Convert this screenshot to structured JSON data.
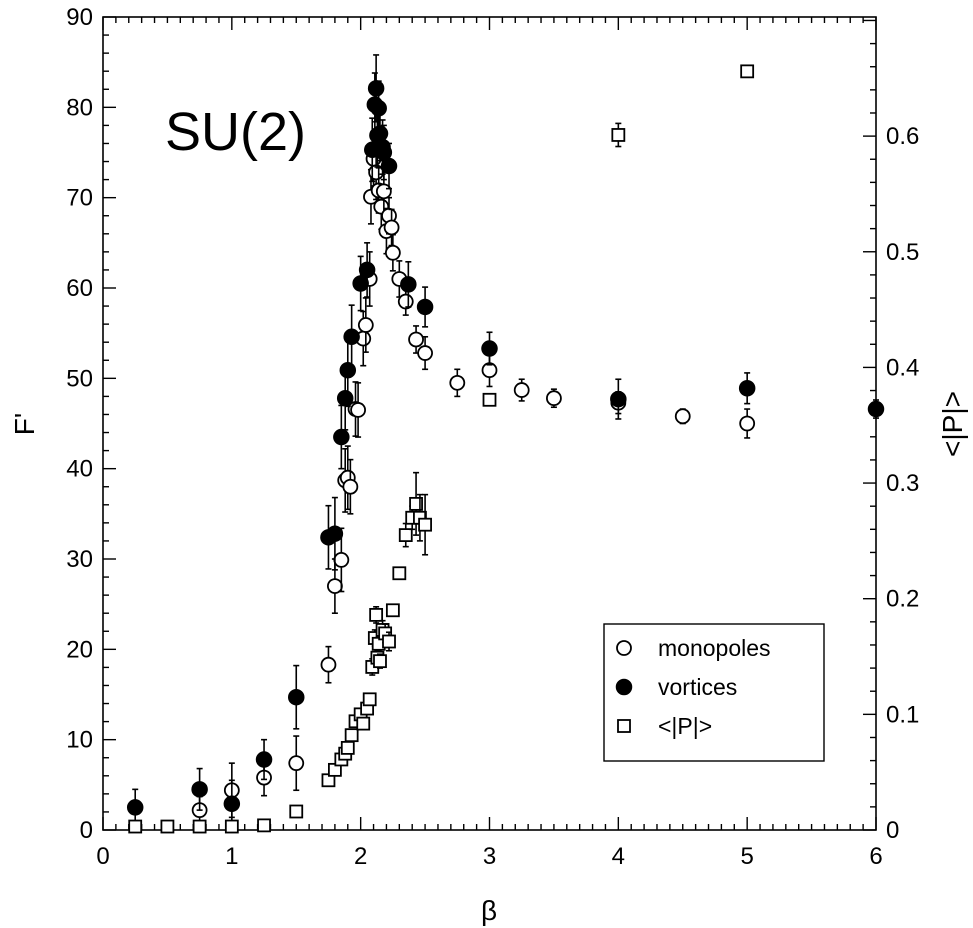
{
  "chart_data": {
    "type": "scatter",
    "title": "SU(2)",
    "xlabel": "β",
    "ylabel": "F'",
    "y2label": "<|P|>",
    "xlim": [
      0,
      6
    ],
    "ylim": [
      0,
      90
    ],
    "y2lim": [
      0,
      0.703
    ],
    "x_ticks": [
      "0",
      "1",
      "2",
      "3",
      "4",
      "5",
      "6"
    ],
    "y_ticks": [
      "0",
      "10",
      "20",
      "30",
      "40",
      "50",
      "60",
      "70",
      "80",
      "90"
    ],
    "y2_ticks": [
      "0",
      "0.1",
      "0.2",
      "0.3",
      "0.4",
      "0.5",
      "0.6"
    ],
    "grid": false,
    "legend_position": "bottom-right",
    "series": [
      {
        "name": "monopoles",
        "marker": "open-circle",
        "axis": "left",
        "points": [
          {
            "x": 0.75,
            "y": 2.2,
            "err": 1.5
          },
          {
            "x": 1.0,
            "y": 4.4,
            "err": 3.0
          },
          {
            "x": 1.25,
            "y": 5.8,
            "err": 2.0
          },
          {
            "x": 1.5,
            "y": 7.4,
            "err": 3.0
          },
          {
            "x": 1.75,
            "y": 18.3,
            "err": 2.0
          },
          {
            "x": 1.8,
            "y": 27.0,
            "err": 3.0
          },
          {
            "x": 1.85,
            "y": 29.9,
            "err": 3.5
          },
          {
            "x": 1.88,
            "y": 38.7,
            "err": 3.5
          },
          {
            "x": 1.9,
            "y": 39.0,
            "err": 3.5
          },
          {
            "x": 1.92,
            "y": 38.0,
            "err": 3.0
          },
          {
            "x": 1.96,
            "y": 46.6,
            "err": 3.0
          },
          {
            "x": 1.98,
            "y": 46.5,
            "err": 3.0
          },
          {
            "x": 2.02,
            "y": 54.4,
            "err": 3.0
          },
          {
            "x": 2.04,
            "y": 55.9,
            "err": 3.0
          },
          {
            "x": 2.07,
            "y": 61.0,
            "err": 3.0
          },
          {
            "x": 2.08,
            "y": 70.1,
            "err": 3.0
          },
          {
            "x": 2.1,
            "y": 74.3,
            "err": 3.0
          },
          {
            "x": 2.12,
            "y": 72.8,
            "err": 3.0
          },
          {
            "x": 2.14,
            "y": 70.8,
            "err": 2.5
          },
          {
            "x": 2.16,
            "y": 69.0,
            "err": 2.5
          },
          {
            "x": 2.18,
            "y": 70.7,
            "err": 2.5
          },
          {
            "x": 2.2,
            "y": 66.3,
            "err": 2.5
          },
          {
            "x": 2.22,
            "y": 68.0,
            "err": 2.0
          },
          {
            "x": 2.24,
            "y": 66.7,
            "err": 2.0
          },
          {
            "x": 2.25,
            "y": 63.9,
            "err": 2.0
          },
          {
            "x": 2.3,
            "y": 61.0,
            "err": 2.0
          },
          {
            "x": 2.35,
            "y": 58.5,
            "err": 1.5
          },
          {
            "x": 2.43,
            "y": 54.3,
            "err": 1.5
          },
          {
            "x": 2.5,
            "y": 52.8,
            "err": 1.8
          },
          {
            "x": 2.75,
            "y": 49.5,
            "err": 1.5
          },
          {
            "x": 3.0,
            "y": 50.9,
            "err": 1.8
          },
          {
            "x": 3.25,
            "y": 48.7,
            "err": 1.2
          },
          {
            "x": 3.5,
            "y": 47.8,
            "err": 1.0
          },
          {
            "x": 4.0,
            "y": 47.3,
            "err": 1.2
          },
          {
            "x": 4.5,
            "y": 45.8,
            "err": 0.8
          },
          {
            "x": 5.0,
            "y": 45.0,
            "err": 1.6
          }
        ]
      },
      {
        "name": "vortices",
        "marker": "filled-circle",
        "axis": "left",
        "points": [
          {
            "x": 0.25,
            "y": 2.5,
            "err": 2.0
          },
          {
            "x": 0.75,
            "y": 4.5,
            "err": 2.3
          },
          {
            "x": 1.0,
            "y": 2.9,
            "err": 2.6
          },
          {
            "x": 1.25,
            "y": 7.8,
            "err": 2.2
          },
          {
            "x": 1.5,
            "y": 14.7,
            "err": 3.5
          },
          {
            "x": 1.75,
            "y": 32.4,
            "err": 3.5
          },
          {
            "x": 1.8,
            "y": 32.8,
            "err": 4.0
          },
          {
            "x": 1.85,
            "y": 43.5,
            "err": 3.5
          },
          {
            "x": 1.88,
            "y": 47.8,
            "err": 3.5
          },
          {
            "x": 1.9,
            "y": 50.9,
            "err": 4.0
          },
          {
            "x": 1.93,
            "y": 54.6,
            "err": 3.5
          },
          {
            "x": 2.0,
            "y": 60.5,
            "err": 3.0
          },
          {
            "x": 2.05,
            "y": 62.0,
            "err": 3.0
          },
          {
            "x": 2.09,
            "y": 75.3,
            "err": 3.5
          },
          {
            "x": 2.11,
            "y": 80.3,
            "err": 3.5
          },
          {
            "x": 2.12,
            "y": 82.1,
            "err": 3.7
          },
          {
            "x": 2.13,
            "y": 76.9,
            "err": 3.5
          },
          {
            "x": 2.14,
            "y": 79.9,
            "err": 3.0
          },
          {
            "x": 2.15,
            "y": 77.1,
            "err": 3.0
          },
          {
            "x": 2.17,
            "y": 75.6,
            "err": 3.0
          },
          {
            "x": 2.18,
            "y": 75.0,
            "err": 3.0
          },
          {
            "x": 2.22,
            "y": 73.5,
            "err": 2.5
          },
          {
            "x": 2.37,
            "y": 60.4,
            "err": 2.5
          },
          {
            "x": 2.5,
            "y": 57.9,
            "err": 2.2
          },
          {
            "x": 3.0,
            "y": 53.3,
            "err": 1.8
          },
          {
            "x": 4.0,
            "y": 47.7,
            "err": 2.2
          },
          {
            "x": 5.0,
            "y": 48.9,
            "err": 1.7
          },
          {
            "x": 6.0,
            "y": 46.6,
            "err": 1.0
          }
        ]
      },
      {
        "name": "<|P|>",
        "marker": "open-square",
        "axis": "right",
        "points": [
          {
            "x": 0.25,
            "y": 0.003,
            "err": 0.0
          },
          {
            "x": 0.5,
            "y": 0.003,
            "err": 0.0
          },
          {
            "x": 0.75,
            "y": 0.003,
            "err": 0.0
          },
          {
            "x": 1.0,
            "y": 0.003,
            "err": 0.0
          },
          {
            "x": 1.25,
            "y": 0.004,
            "err": 0.0
          },
          {
            "x": 1.5,
            "y": 0.016,
            "err": 0.0
          },
          {
            "x": 1.75,
            "y": 0.043,
            "err": 0.0
          },
          {
            "x": 1.8,
            "y": 0.052,
            "err": 0.0
          },
          {
            "x": 1.85,
            "y": 0.061,
            "err": 0.0
          },
          {
            "x": 1.88,
            "y": 0.066,
            "err": 0.0
          },
          {
            "x": 1.9,
            "y": 0.071,
            "err": 0.0
          },
          {
            "x": 1.93,
            "y": 0.082,
            "err": 0.0
          },
          {
            "x": 1.96,
            "y": 0.094,
            "err": 0.0
          },
          {
            "x": 2.0,
            "y": 0.1,
            "err": 0.0
          },
          {
            "x": 2.02,
            "y": 0.092,
            "err": 0.0
          },
          {
            "x": 2.05,
            "y": 0.105,
            "err": 0.0
          },
          {
            "x": 2.07,
            "y": 0.113,
            "err": 0.0
          },
          {
            "x": 2.09,
            "y": 0.141,
            "err": 0.007
          },
          {
            "x": 2.11,
            "y": 0.166,
            "err": 0.007
          },
          {
            "x": 2.12,
            "y": 0.186,
            "err": 0.007
          },
          {
            "x": 2.13,
            "y": 0.149,
            "err": 0.006
          },
          {
            "x": 2.14,
            "y": 0.161,
            "err": 0.006
          },
          {
            "x": 2.15,
            "y": 0.146,
            "err": 0.006
          },
          {
            "x": 2.17,
            "y": 0.173,
            "err": 0.008
          },
          {
            "x": 2.19,
            "y": 0.17,
            "err": 0.008
          },
          {
            "x": 2.22,
            "y": 0.163,
            "err": 0.008
          },
          {
            "x": 2.25,
            "y": 0.19,
            "err": 0.005
          },
          {
            "x": 2.3,
            "y": 0.222,
            "err": 0.005
          },
          {
            "x": 2.35,
            "y": 0.255,
            "err": 0.01
          },
          {
            "x": 2.4,
            "y": 0.27,
            "err": 0.01
          },
          {
            "x": 2.43,
            "y": 0.282,
            "err": 0.027
          },
          {
            "x": 2.46,
            "y": 0.27,
            "err": 0.02
          },
          {
            "x": 2.5,
            "y": 0.264,
            "err": 0.026
          },
          {
            "x": 3.0,
            "y": 0.372,
            "err": 0.0
          },
          {
            "x": 4.0,
            "y": 0.601,
            "err": 0.01
          },
          {
            "x": 5.0,
            "y": 0.656,
            "err": 0.0
          }
        ]
      }
    ]
  }
}
